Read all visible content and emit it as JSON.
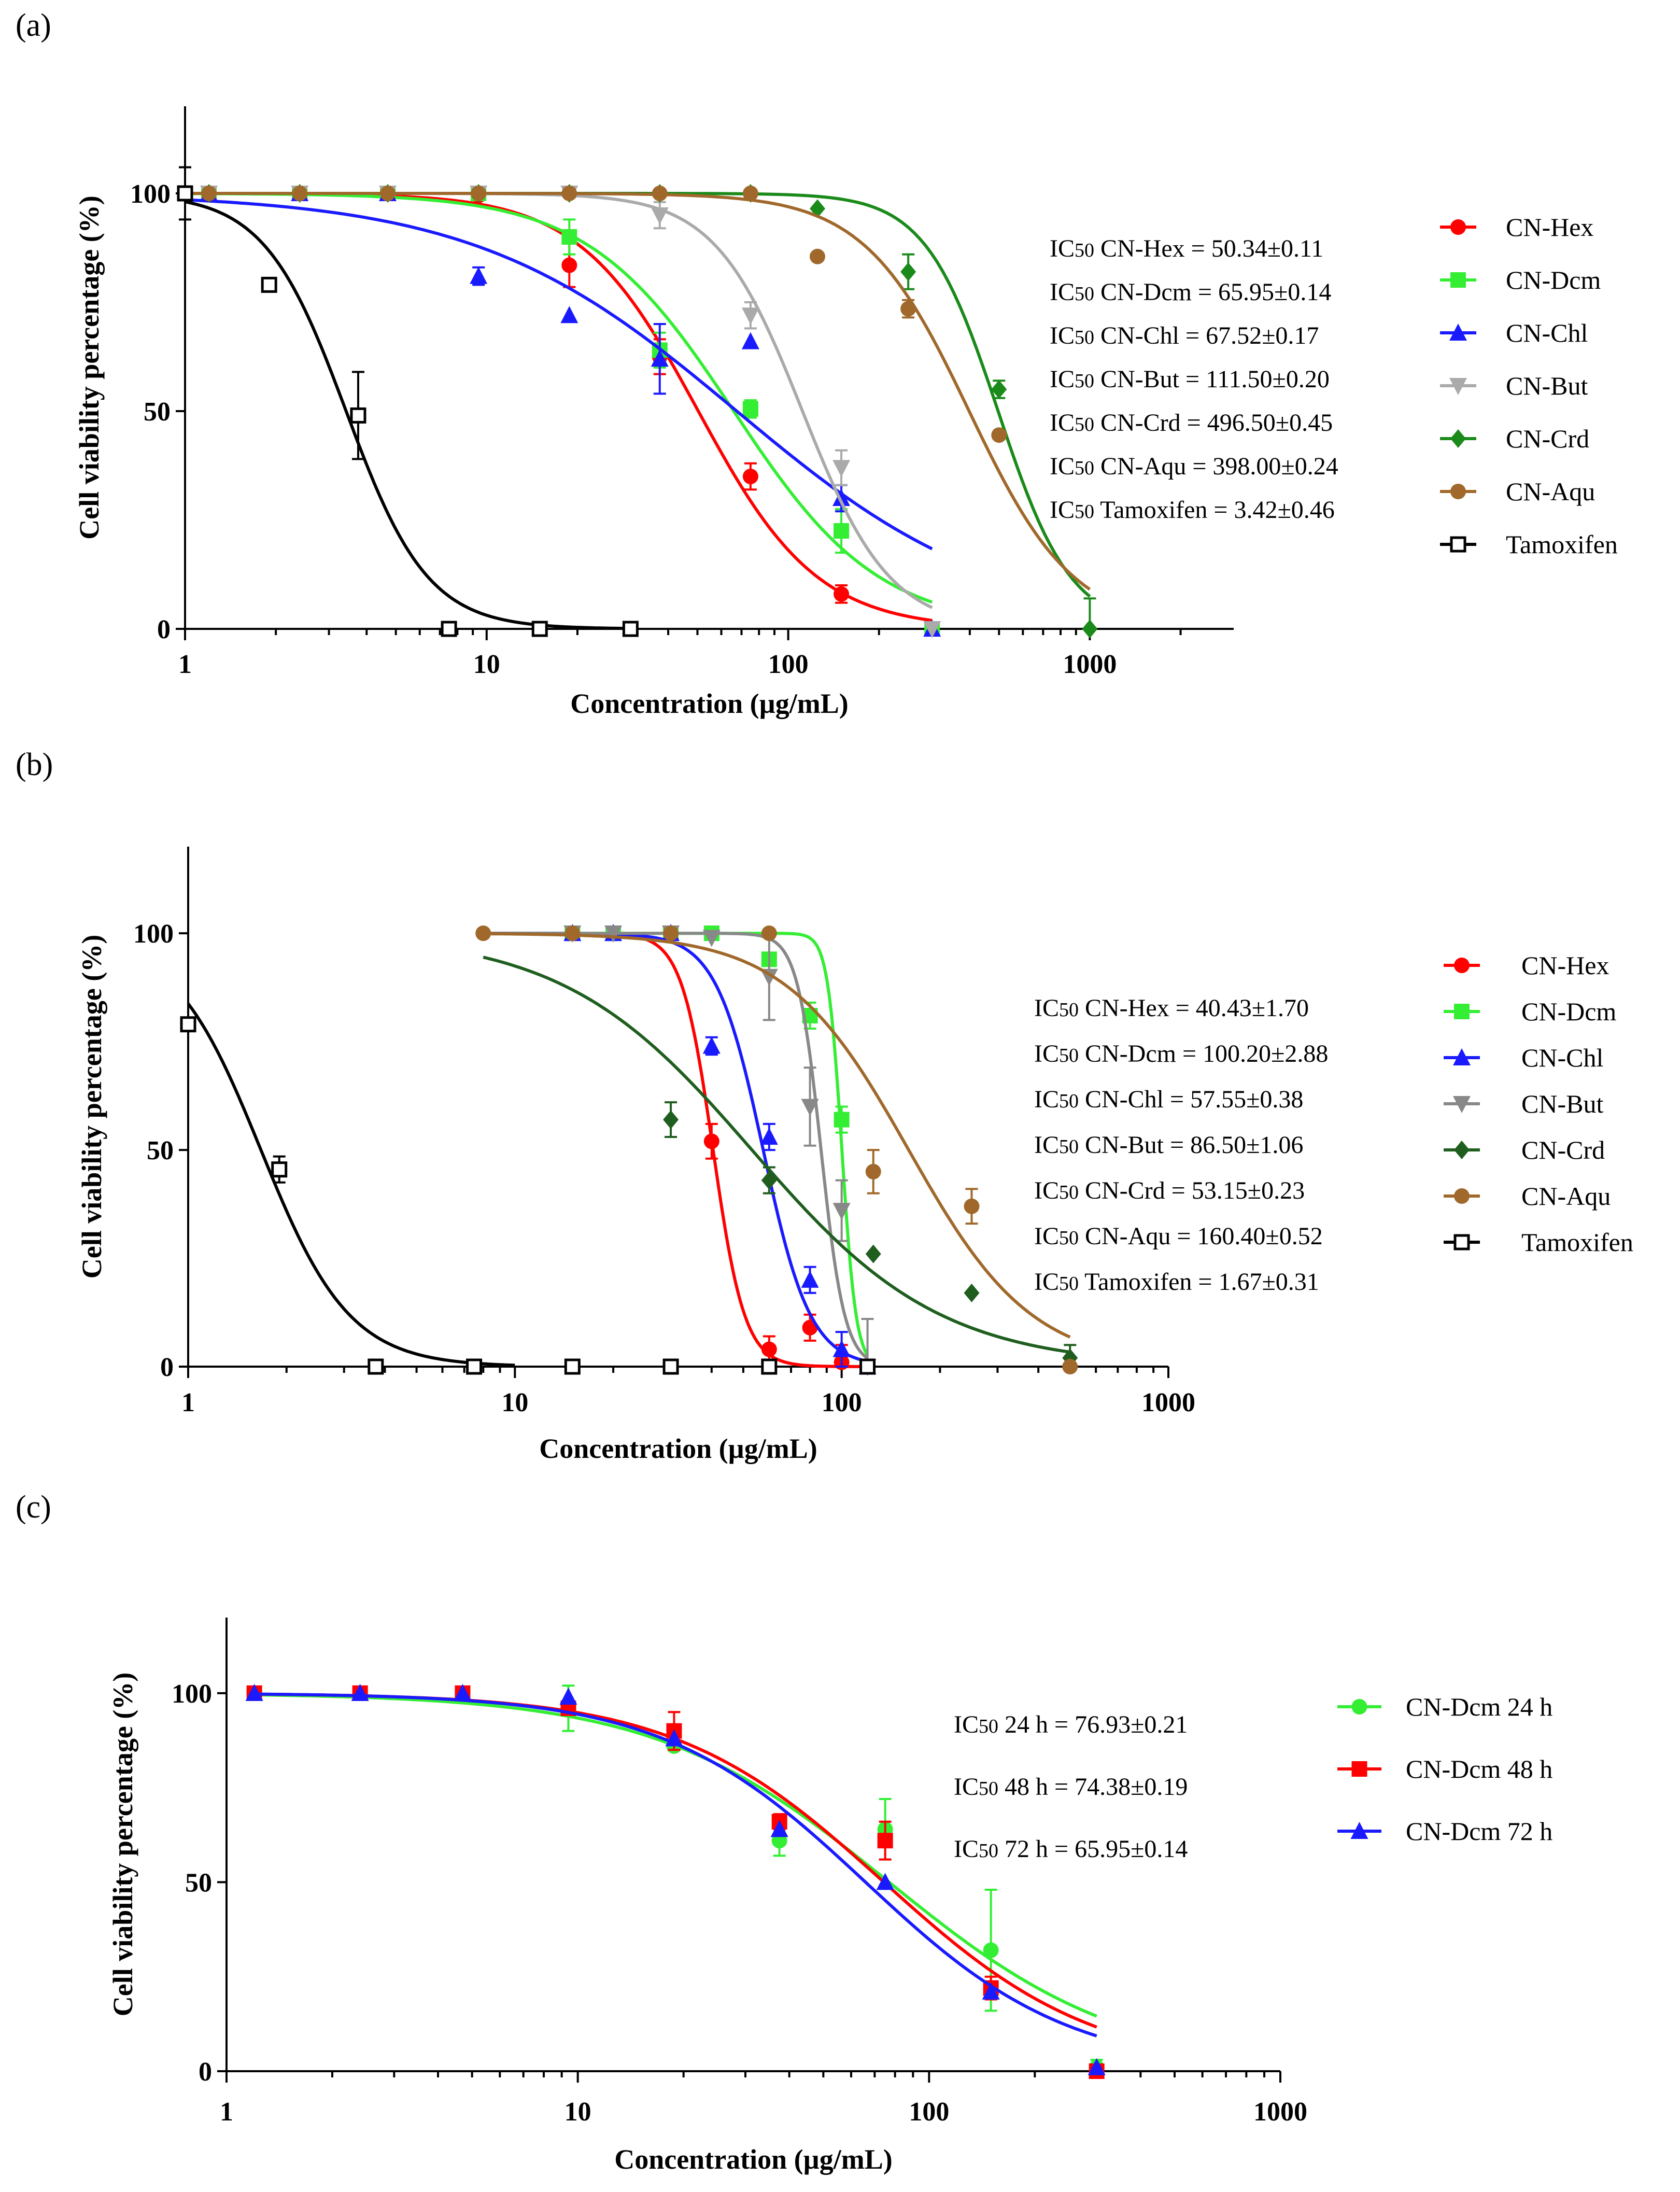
{
  "figure": {
    "panel_labels": [
      "(a)",
      "(b)",
      "(c)"
    ]
  },
  "chart_data": [
    {
      "type": "line",
      "panel": "(a)",
      "xscale": "log",
      "xlabel": "Concentration (µg/mL)",
      "ylabel": "Cell viability percentage (%)",
      "xlim": [
        1,
        3000
      ],
      "ylim": [
        0,
        120
      ],
      "xticks": [
        1,
        10,
        100,
        1000
      ],
      "xtick_labels": [
        "1",
        "10",
        "100",
        "1000"
      ],
      "yticks": [
        0,
        50,
        100
      ],
      "ytick_labels": [
        "0",
        "50",
        "100"
      ],
      "annotations": [
        "IC50 CN-Hex = 50.34±0.11",
        "IC50 CN-Dcm = 65.95±0.14",
        "IC50 CN-Chl   = 67.52±0.17",
        "IC50 CN-But  = 111.50±0.20",
        "IC50 CN-Crd = 496.50±0.45",
        "IC50 CN-Aqu = 398.00±0.24",
        "IC50 Tamoxifen = 3.42±0.46"
      ],
      "series": [
        {
          "name": "CN-Hex",
          "color": "#ff0000",
          "marker": "circle",
          "ic50": 50.34,
          "hill": 2.2,
          "curve_range": [
            1,
            300
          ],
          "points": [
            [
              1.2,
              100
            ],
            [
              2.4,
              100
            ],
            [
              4.7,
              100
            ],
            [
              9.4,
              99.5
            ],
            [
              18.8,
              83.5
            ],
            [
              37.5,
              62.5
            ],
            [
              75,
              35
            ],
            [
              150,
              8
            ],
            [
              300,
              0
            ]
          ],
          "errors": [
            0,
            0,
            0,
            0,
            5,
            4,
            3,
            2,
            0
          ]
        },
        {
          "name": "CN-Dcm",
          "color": "#33ee33",
          "marker": "square",
          "ic50": 65.95,
          "hill": 1.8,
          "curve_range": [
            1,
            300
          ],
          "points": [
            [
              1.2,
              100
            ],
            [
              2.4,
              100
            ],
            [
              4.7,
              100
            ],
            [
              9.4,
              100
            ],
            [
              18.8,
              90
            ],
            [
              37.5,
              64
            ],
            [
              75,
              50.5
            ],
            [
              150,
              22.5
            ],
            [
              300,
              0
            ]
          ],
          "errors": [
            0,
            0,
            0,
            0,
            4,
            4,
            2,
            5,
            0
          ]
        },
        {
          "name": "CN-Chl",
          "color": "#1a1aff",
          "marker": "triangle-up",
          "ic50": 67.52,
          "hill": 1.0,
          "curve_range": [
            1,
            300
          ],
          "points": [
            [
              1.2,
              100
            ],
            [
              2.4,
              100
            ],
            [
              4.7,
              100
            ],
            [
              9.4,
              81
            ],
            [
              18.8,
              72
            ],
            [
              37.5,
              62
            ],
            [
              75,
              66
            ],
            [
              150,
              30
            ],
            [
              300,
              0
            ]
          ],
          "errors": [
            0,
            0,
            0,
            2,
            0,
            8,
            0,
            3,
            0
          ]
        },
        {
          "name": "CN-But",
          "color": "#aaaaaa",
          "marker": "triangle-down",
          "ic50": 111.5,
          "hill": 3.0,
          "curve_range": [
            1,
            300
          ],
          "points": [
            [
              1.2,
              100
            ],
            [
              2.4,
              100
            ],
            [
              4.7,
              100
            ],
            [
              9.4,
              100
            ],
            [
              18.8,
              100
            ],
            [
              37.5,
              95
            ],
            [
              75,
              72
            ],
            [
              150,
              37
            ],
            [
              300,
              0
            ]
          ],
          "errors": [
            0,
            0,
            0,
            0,
            0,
            3,
            3,
            4,
            0
          ]
        },
        {
          "name": "CN-Crd",
          "color": "#1a8a1a",
          "marker": "diamond",
          "ic50": 496.5,
          "hill": 3.6,
          "curve_range": [
            1,
            1000
          ],
          "points": [
            [
              1.2,
              100
            ],
            [
              2.4,
              100
            ],
            [
              4.7,
              100
            ],
            [
              9.4,
              100
            ],
            [
              18.8,
              100
            ],
            [
              37.5,
              100
            ],
            [
              75,
              100
            ],
            [
              125,
              96.5
            ],
            [
              250,
              82
            ],
            [
              500,
              55
            ],
            [
              1000,
              0
            ]
          ],
          "errors": [
            0,
            0,
            0,
            0,
            0,
            0,
            0,
            0,
            4,
            2,
            7
          ]
        },
        {
          "name": "CN-Aqu",
          "color": "#a0692b",
          "marker": "circle",
          "ic50": 398.0,
          "hill": 2.5,
          "curve_range": [
            1,
            1000
          ],
          "points": [
            [
              1.2,
              100
            ],
            [
              2.4,
              100
            ],
            [
              4.7,
              100
            ],
            [
              9.4,
              100
            ],
            [
              18.8,
              100
            ],
            [
              37.5,
              100
            ],
            [
              75,
              100
            ],
            [
              125,
              85.5
            ],
            [
              250,
              73.5
            ],
            [
              500,
              44.5
            ]
          ],
          "errors": [
            0,
            0,
            0,
            0,
            0,
            0,
            0,
            0,
            2,
            0
          ]
        },
        {
          "name": "Tamoxifen",
          "color": "#000000",
          "marker": "open-square",
          "ic50": 3.42,
          "hill": 3.2,
          "curve_range": [
            1,
            30
          ],
          "points": [
            [
              1,
              100
            ],
            [
              1.9,
              79
            ],
            [
              3.75,
              49
            ],
            [
              7.5,
              0
            ],
            [
              15,
              0
            ],
            [
              30,
              0
            ]
          ],
          "errors": [
            6,
            0,
            10,
            0,
            0,
            0
          ]
        }
      ]
    },
    {
      "type": "line",
      "panel": "(b)",
      "xscale": "log",
      "xlabel": "Concentration (µg/mL)",
      "ylabel": "Cell viability percentage (%)",
      "xlim": [
        1,
        1000
      ],
      "ylim": [
        0,
        120
      ],
      "xticks": [
        1,
        10,
        100,
        1000
      ],
      "xtick_labels": [
        "1",
        "10",
        "100",
        "1000"
      ],
      "yticks": [
        0,
        50,
        100
      ],
      "ytick_labels": [
        "0",
        "50",
        "100"
      ],
      "annotations": [
        "IC50 CN-Hex = 40.43±1.70",
        "IC50 CN-Dcm = 100.20±2.88",
        "IC50 CN-Chl = 57.55±0.38",
        "IC50 CN-But = 86.50±1.06",
        "IC50 CN-Crd = 53.15±0.23",
        "IC50 CN-Aqu = 160.40±0.52",
        "IC50 Tamoxifen = 1.67±0.31"
      ],
      "series": [
        {
          "name": "CN-Hex",
          "color": "#ff0000",
          "marker": "circle",
          "ic50": 40.43,
          "hill": 9.0,
          "curve_range": [
            8,
            120
          ],
          "points": [
            [
              15,
              100
            ],
            [
              20,
              100
            ],
            [
              30,
              100
            ],
            [
              40,
              52
            ],
            [
              60,
              4
            ],
            [
              80,
              9
            ],
            [
              100,
              1
            ],
            [
              120,
              0
            ]
          ],
          "errors": [
            0,
            0,
            0,
            4,
            3,
            3,
            4,
            0
          ]
        },
        {
          "name": "CN-Dcm",
          "color": "#33ee33",
          "marker": "square",
          "ic50": 100.2,
          "hill": 20.0,
          "curve_range": [
            8,
            120
          ],
          "points": [
            [
              15,
              100
            ],
            [
              20,
              100
            ],
            [
              30,
              100
            ],
            [
              40,
              100
            ],
            [
              60,
              94
            ],
            [
              80,
              81
            ],
            [
              100,
              57
            ],
            [
              120,
              0
            ]
          ],
          "errors": [
            0,
            0,
            0,
            0,
            0,
            3,
            3,
            0
          ]
        },
        {
          "name": "CN-Chl",
          "color": "#1a1aff",
          "marker": "triangle-up",
          "ic50": 57.55,
          "hill": 6.0,
          "curve_range": [
            8,
            120
          ],
          "points": [
            [
              15,
              100
            ],
            [
              20,
              100
            ],
            [
              30,
              100
            ],
            [
              40,
              74
            ],
            [
              60,
              53
            ],
            [
              80,
              20
            ],
            [
              100,
              4
            ],
            [
              120,
              0
            ]
          ],
          "errors": [
            0,
            0,
            0,
            2,
            3,
            3,
            4,
            0
          ]
        },
        {
          "name": "CN-But",
          "color": "#888888",
          "marker": "triangle-down",
          "ic50": 86.5,
          "hill": 12.0,
          "curve_range": [
            8,
            120
          ],
          "points": [
            [
              15,
              100
            ],
            [
              20,
              100
            ],
            [
              30,
              100
            ],
            [
              40,
              99
            ],
            [
              60,
              90
            ],
            [
              80,
              60
            ],
            [
              100,
              36
            ],
            [
              120,
              0
            ]
          ],
          "errors": [
            0,
            0,
            0,
            0,
            10,
            9,
            7,
            11
          ]
        },
        {
          "name": "CN-Crd",
          "color": "#1f5e1f",
          "marker": "diamond",
          "ic50": 53.15,
          "hill": 1.5,
          "curve_range": [
            8,
            500
          ],
          "points": [
            [
              30,
              57
            ],
            [
              60,
              43
            ],
            [
              125,
              26
            ],
            [
              250,
              17
            ],
            [
              500,
              2
            ]
          ],
          "errors": [
            4,
            3,
            0,
            0,
            3
          ]
        },
        {
          "name": "CN-Aqu",
          "color": "#a0692b",
          "marker": "circle",
          "ic50": 160.4,
          "hill": 2.3,
          "curve_range": [
            8,
            500
          ],
          "points": [
            [
              8,
              100
            ],
            [
              15,
              100
            ],
            [
              30,
              100
            ],
            [
              60,
              100
            ],
            [
              125,
              45
            ],
            [
              250,
              37
            ],
            [
              500,
              0
            ]
          ],
          "errors": [
            0,
            0,
            0,
            0,
            5,
            4,
            0
          ]
        },
        {
          "name": "Tamoxifen",
          "color": "#000000",
          "marker": "open-square",
          "ic50": 1.67,
          "hill": 3.2,
          "curve_range": [
            1,
            10
          ],
          "points": [
            [
              1,
              79
            ],
            [
              1.9,
              45.5
            ],
            [
              3.75,
              0
            ],
            [
              7.5,
              0
            ],
            [
              15,
              0
            ],
            [
              30,
              0
            ],
            [
              60,
              0
            ],
            [
              120,
              0
            ]
          ],
          "errors": [
            0,
            3,
            0,
            0,
            0,
            0,
            0,
            0
          ]
        }
      ]
    },
    {
      "type": "line",
      "panel": "(c)",
      "xscale": "log",
      "xlabel": "Concentration (µg/mL)",
      "ylabel": "Cell viability percentage (%)",
      "xlim": [
        1,
        1000
      ],
      "ylim": [
        0,
        120
      ],
      "xticks": [
        1,
        10,
        100,
        1000
      ],
      "xtick_labels": [
        "1",
        "10",
        "100",
        "1000"
      ],
      "yticks": [
        0,
        50,
        100
      ],
      "ytick_labels": [
        "0",
        "50",
        "100"
      ],
      "annotations": [
        "IC50 24 h = 76.93±0.21",
        "IC50 48 h = 74.38±0.19",
        "IC50 72 h = 65.95±0.14"
      ],
      "series": [
        {
          "name": "CN-Dcm 24 h",
          "color": "#33ee33",
          "marker": "circle",
          "ic50": 76.93,
          "hill": 1.3,
          "curve_range": [
            1.2,
            300
          ],
          "points": [
            [
              1.2,
              100
            ],
            [
              2.4,
              100
            ],
            [
              4.7,
              100
            ],
            [
              9.4,
              96
            ],
            [
              18.8,
              86
            ],
            [
              37.5,
              61
            ],
            [
              75,
              64
            ],
            [
              150,
              32
            ],
            [
              300,
              1
            ]
          ],
          "errors": [
            0,
            0,
            0,
            6,
            0,
            4,
            8,
            16,
            2
          ]
        },
        {
          "name": "CN-Dcm 48 h",
          "color": "#ff0000",
          "marker": "square",
          "ic50": 74.38,
          "hill": 1.45,
          "curve_range": [
            1.2,
            300
          ],
          "points": [
            [
              1.2,
              100
            ],
            [
              2.4,
              100
            ],
            [
              4.7,
              100
            ],
            [
              9.4,
              96
            ],
            [
              18.8,
              90
            ],
            [
              37.5,
              66
            ],
            [
              75,
              61
            ],
            [
              150,
              22
            ],
            [
              300,
              0
            ]
          ],
          "errors": [
            0,
            0,
            0,
            0,
            5,
            2,
            5,
            3,
            0
          ]
        },
        {
          "name": "CN-Dcm 72 h",
          "color": "#1a1aff",
          "marker": "triangle-up",
          "ic50": 65.95,
          "hill": 1.5,
          "curve_range": [
            1.2,
            300
          ],
          "points": [
            [
              1.2,
              100
            ],
            [
              2.4,
              100
            ],
            [
              4.7,
              100
            ],
            [
              9.4,
              99
            ],
            [
              18.8,
              88
            ],
            [
              37.5,
              64
            ],
            [
              75,
              50
            ],
            [
              150,
              21
            ],
            [
              300,
              1
            ]
          ],
          "errors": [
            0,
            0,
            0,
            0,
            0,
            0,
            0,
            0,
            0
          ]
        }
      ]
    }
  ]
}
